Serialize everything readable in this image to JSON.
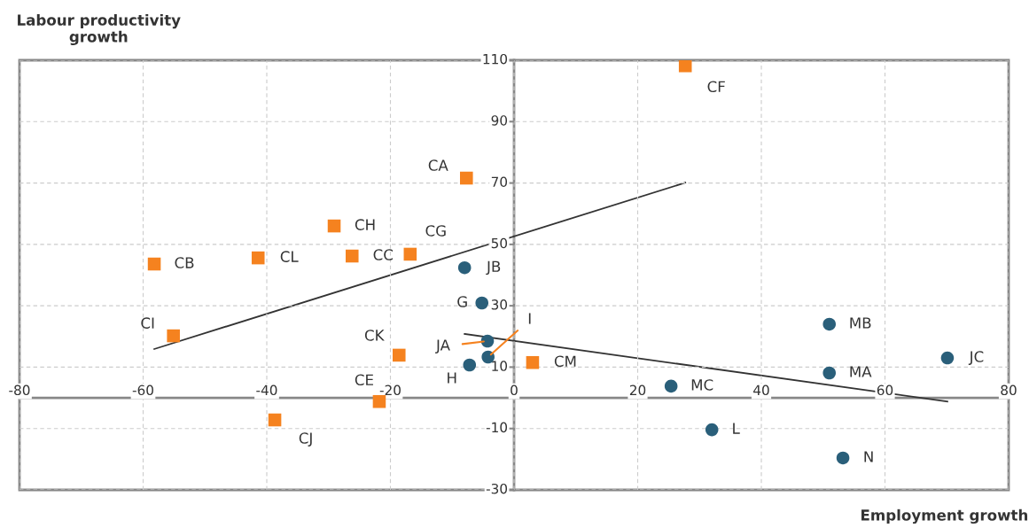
{
  "chart_data": {
    "type": "scatter",
    "xlabel": "Employment growth",
    "ylabel": "Labour productivity growth",
    "xlim": [
      -80,
      80
    ],
    "ylim": [
      -30,
      110
    ],
    "xticks": [
      -80,
      -60,
      -40,
      -20,
      0,
      20,
      40,
      60,
      80
    ],
    "yticks": [
      -30,
      -10,
      10,
      30,
      50,
      70,
      90,
      110
    ],
    "grid": true,
    "legend": false,
    "series": [
      {
        "color": "#f5821f",
        "marker": "square",
        "x": [
          27.7,
          -7.7,
          -29.1,
          -16.8,
          -26.2,
          -41.4,
          -58.2,
          -55.1,
          -18.6,
          3.0,
          -21.8,
          -38.7
        ],
        "values": [
          108.2,
          71.6,
          56.0,
          46.8,
          46.2,
          45.6,
          43.6,
          20.2,
          13.9,
          11.5,
          -1.2,
          -7.2
        ]
      },
      {
        "color": "#2a5f7a",
        "marker": "circle",
        "x": [
          -8.0,
          -5.2,
          -4.3,
          -4.2,
          -7.2,
          51.0,
          51.0,
          70.1,
          25.4,
          32.0,
          53.2
        ],
        "values": [
          42.4,
          30.9,
          18.5,
          13.3,
          10.7,
          24.0,
          8.1,
          13.0,
          3.8,
          -10.4,
          -19.6
        ]
      },
      {
        "type": "line",
        "color": "#333333",
        "marker": "none",
        "x": [
          -58.2,
          27.7
        ],
        "values": [
          15.9,
          70.1
        ]
      },
      {
        "type": "line",
        "color": "#333333",
        "marker": "none",
        "x": [
          -8.0,
          70.1
        ],
        "values": [
          20.8,
          -1.2
        ]
      }
    ],
    "annotations": [
      {
        "text": "CF",
        "x": 27.7,
        "y": 108.2
      },
      {
        "text": "CA",
        "x": -7.7,
        "y": 71.6
      },
      {
        "text": "CH",
        "x": -29.1,
        "y": 56.0
      },
      {
        "text": "CG",
        "x": -16.8,
        "y": 46.8
      },
      {
        "text": "CC",
        "x": -26.2,
        "y": 46.2
      },
      {
        "text": "CL",
        "x": -41.4,
        "y": 45.6
      },
      {
        "text": "CB",
        "x": -58.2,
        "y": 43.6
      },
      {
        "text": "CI",
        "x": -55.1,
        "y": 20.2
      },
      {
        "text": "CK",
        "x": -18.6,
        "y": 13.9
      },
      {
        "text": "CM",
        "x": 3.0,
        "y": 11.5
      },
      {
        "text": "CE",
        "x": -21.8,
        "y": -1.2
      },
      {
        "text": "CJ",
        "x": -38.7,
        "y": -7.2
      },
      {
        "text": "JB",
        "x": -8.0,
        "y": 42.4
      },
      {
        "text": "G",
        "x": -5.2,
        "y": 30.9
      },
      {
        "text": "JA",
        "x": -4.3,
        "y": 18.5
      },
      {
        "text": "I",
        "x": -4.2,
        "y": 13.3
      },
      {
        "text": "H",
        "x": -7.2,
        "y": 10.7
      },
      {
        "text": "MB",
        "x": 51.0,
        "y": 24.0
      },
      {
        "text": "MA",
        "x": 51.0,
        "y": 8.1
      },
      {
        "text": "JC",
        "x": 70.1,
        "y": 13.0
      },
      {
        "text": "MC",
        "x": 25.4,
        "y": 3.8
      },
      {
        "text": "L",
        "x": 32.0,
        "y": -10.4
      },
      {
        "text": "N",
        "x": 53.2,
        "y": -19.6
      }
    ]
  }
}
